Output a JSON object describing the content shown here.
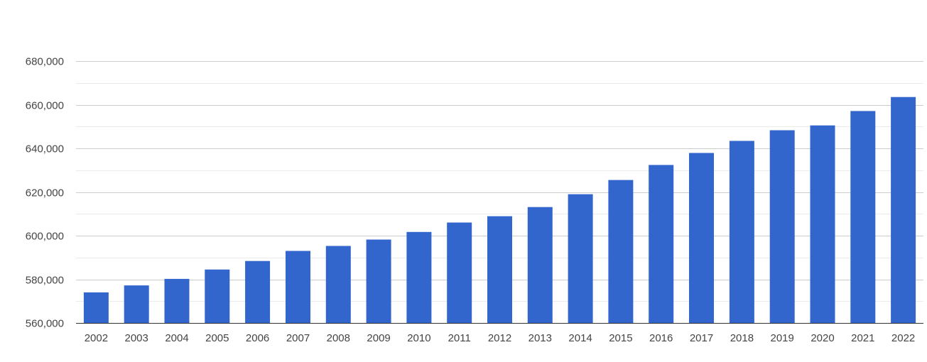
{
  "chart_data": {
    "type": "bar",
    "title": "",
    "xlabel": "",
    "ylabel": "",
    "ylim": [
      560000,
      680000
    ],
    "yticks": [
      560000,
      580000,
      600000,
      620000,
      640000,
      660000,
      680000
    ],
    "ytick_labels": [
      "560,000",
      "580,000",
      "600,000",
      "620,000",
      "640,000",
      "660,000",
      "680,000"
    ],
    "minor_gridlines": true,
    "legend": "none",
    "bar_color": "#3366cc",
    "categories": [
      "2002",
      "2003",
      "2004",
      "2005",
      "2006",
      "2007",
      "2008",
      "2009",
      "2010",
      "2011",
      "2012",
      "2013",
      "2014",
      "2015",
      "2016",
      "2017",
      "2018",
      "2019",
      "2020",
      "2021",
      "2022"
    ],
    "values": [
      574000,
      577200,
      580200,
      584500,
      588400,
      593000,
      595300,
      598200,
      601700,
      606000,
      608900,
      613100,
      619000,
      625500,
      632400,
      637900,
      643400,
      648300,
      650500,
      657100,
      663500
    ]
  }
}
